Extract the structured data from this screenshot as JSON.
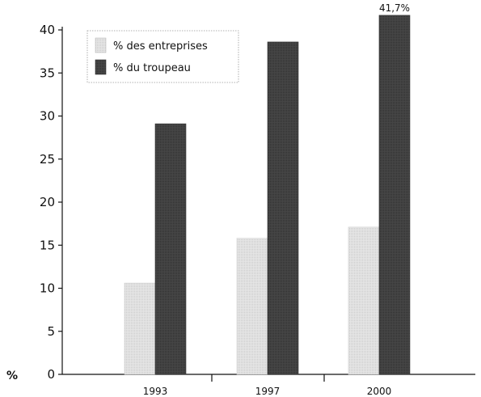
{
  "chart_data": {
    "type": "bar",
    "title": "",
    "xlabel": "",
    "ylabel": "%",
    "categories": [
      "1993",
      "1997",
      "2000"
    ],
    "ylim": [
      0,
      40
    ],
    "yticks": [
      0,
      5,
      10,
      15,
      20,
      25,
      30,
      35,
      40
    ],
    "grid": false,
    "legend": "top-left",
    "series": [
      {
        "name": "% des entreprises",
        "values": [
          10.6,
          15.8,
          17.1
        ],
        "color": "#e4e4e4"
      },
      {
        "name": "% du troupeau",
        "values": [
          29.1,
          38.6,
          41.7
        ],
        "color": "#444444"
      }
    ],
    "annotations": [
      {
        "text": "41,7%",
        "category": "2000",
        "series": "% du troupeau"
      }
    ]
  }
}
